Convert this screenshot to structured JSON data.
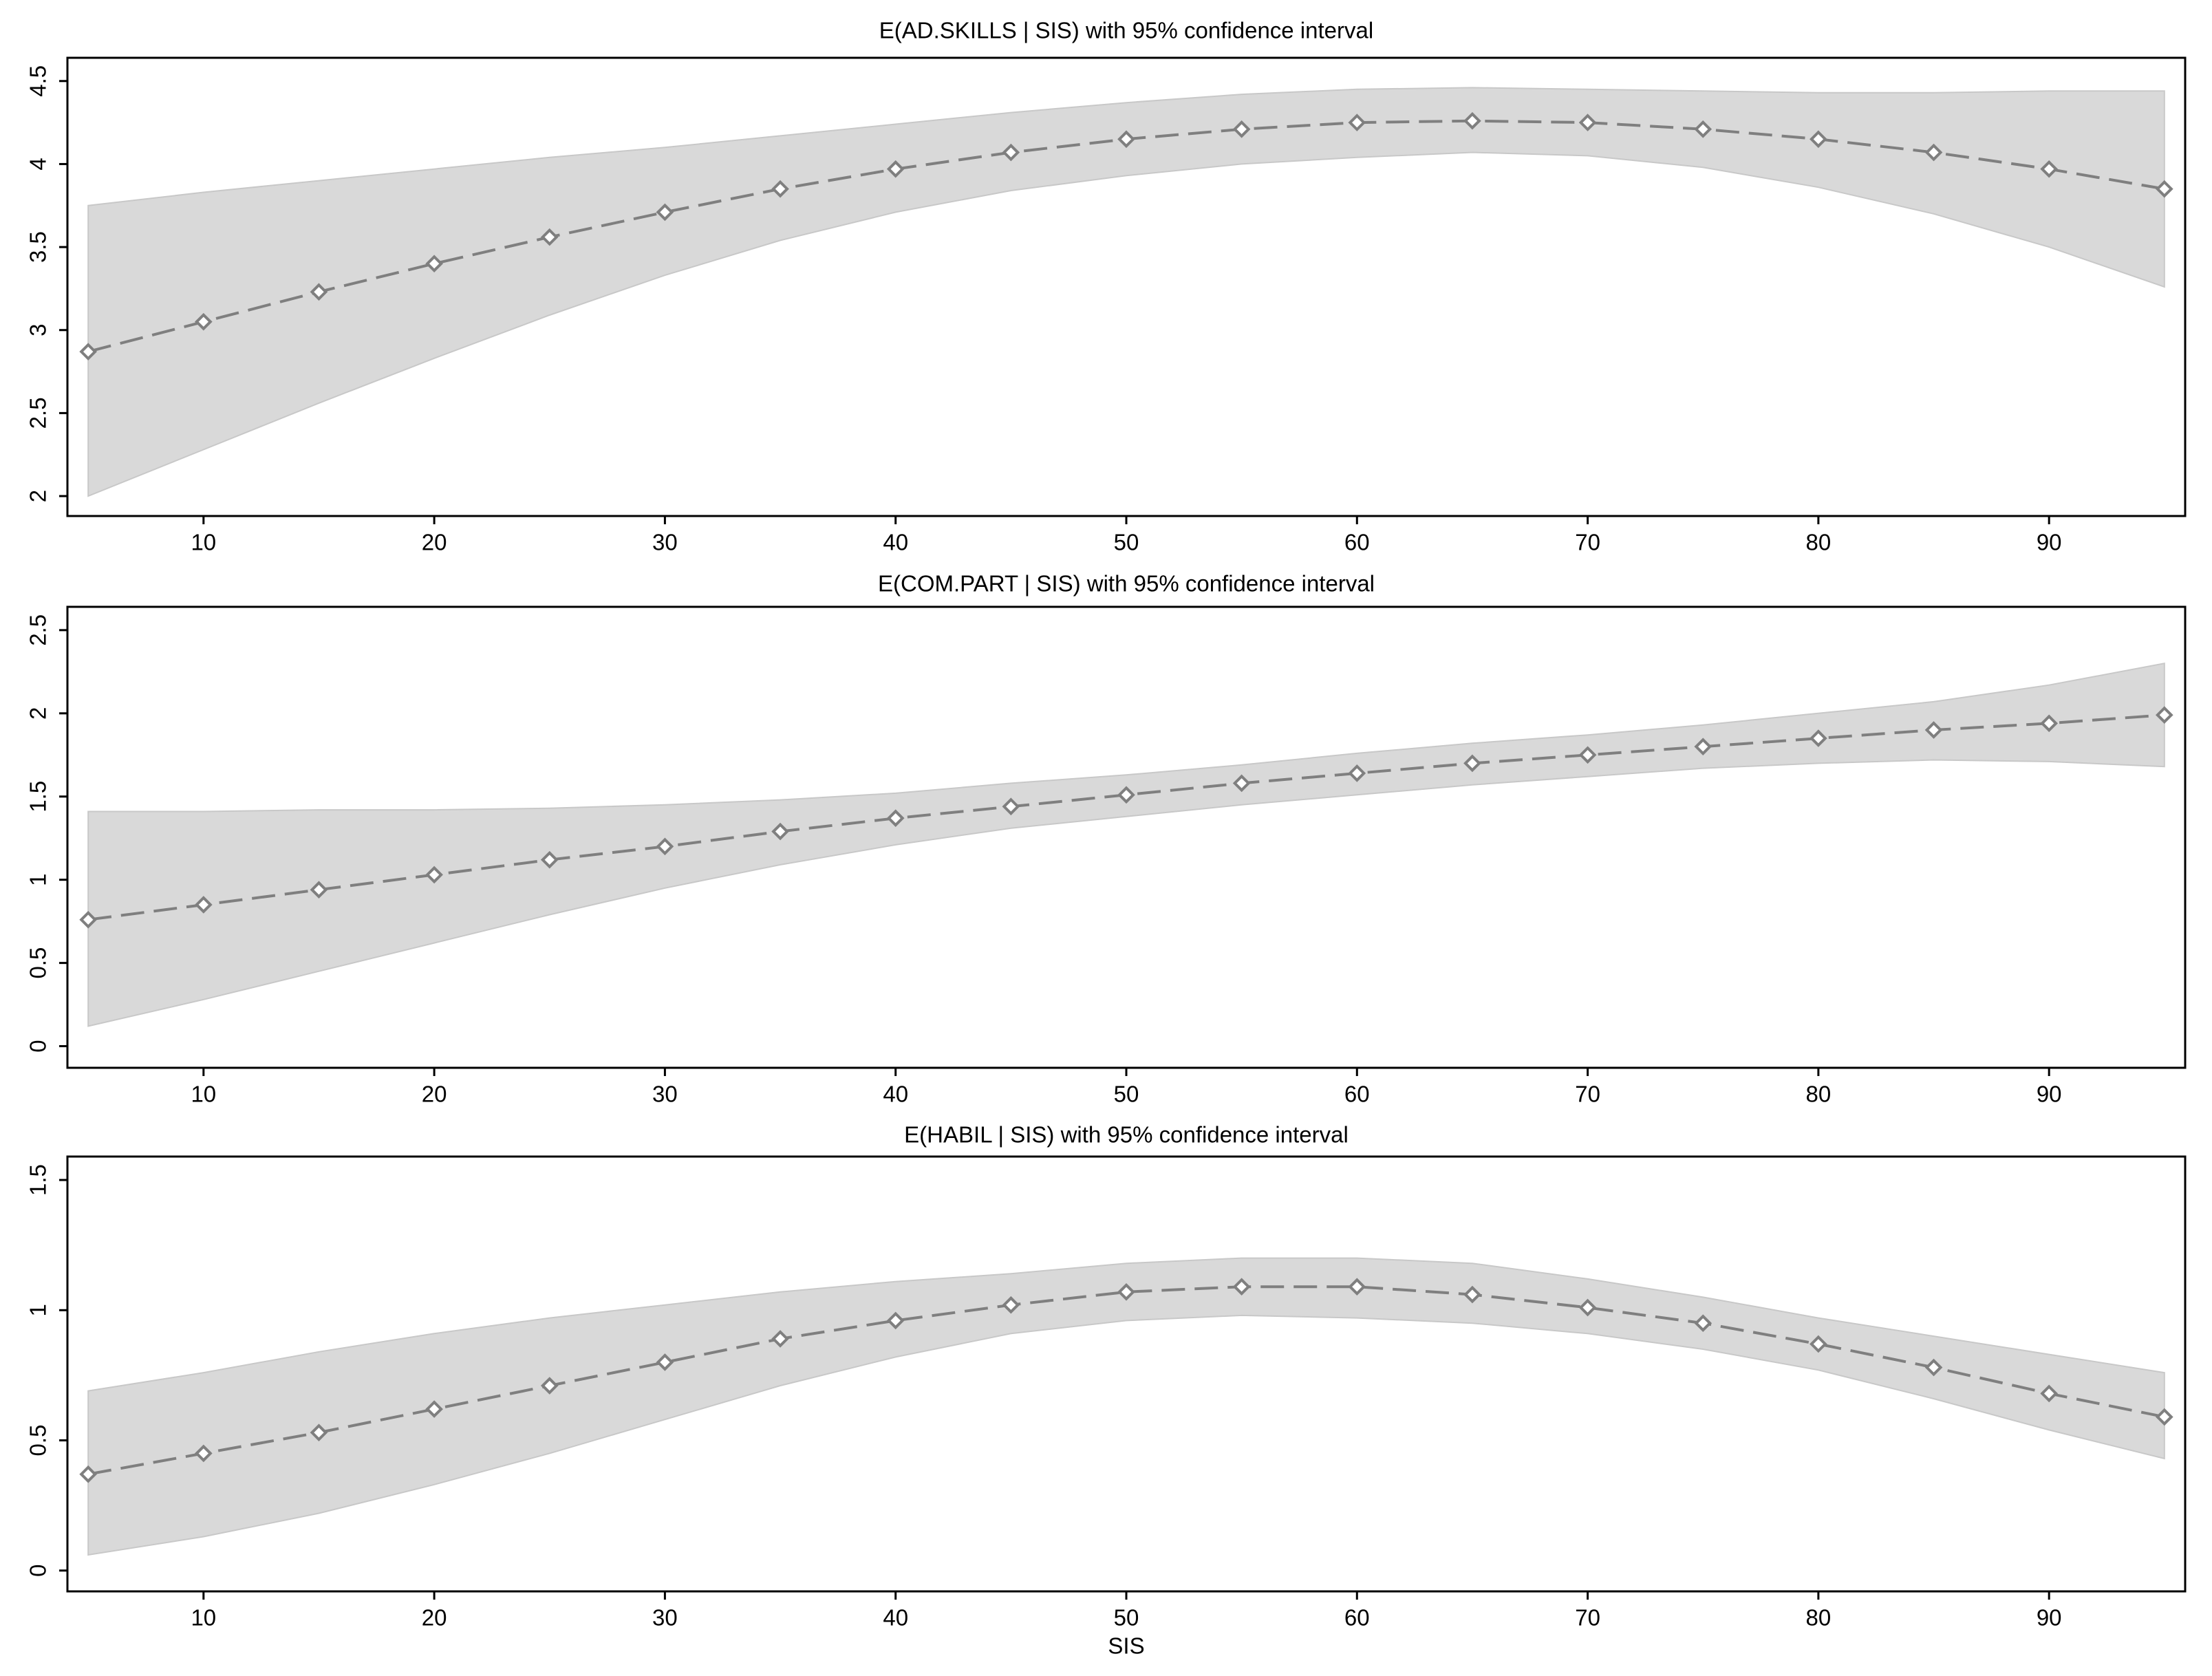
{
  "chart_data": [
    {
      "type": "line",
      "title": "E(AD.SKILLS | SIS) with 95% confidence interval",
      "x": [
        5,
        10,
        15,
        20,
        25,
        30,
        35,
        40,
        45,
        50,
        55,
        60,
        65,
        70,
        75,
        80,
        85,
        90,
        95
      ],
      "values": [
        2.87,
        3.05,
        3.23,
        3.4,
        3.56,
        3.71,
        3.85,
        3.97,
        4.07,
        4.15,
        4.21,
        4.25,
        4.26,
        4.25,
        4.21,
        4.15,
        4.07,
        3.97,
        3.85
      ],
      "upper": [
        3.75,
        3.83,
        3.9,
        3.97,
        4.04,
        4.1,
        4.17,
        4.24,
        4.31,
        4.37,
        4.42,
        4.45,
        4.46,
        4.45,
        4.44,
        4.43,
        4.43,
        4.44,
        4.44
      ],
      "lower": [
        2.0,
        2.28,
        2.56,
        2.83,
        3.09,
        3.33,
        3.54,
        3.71,
        3.84,
        3.93,
        4.0,
        4.04,
        4.07,
        4.05,
        3.98,
        3.86,
        3.7,
        3.5,
        3.26
      ],
      "color": "#7f7f7f",
      "band_color": "#d9d9d9",
      "xlim": [
        4.1,
        95.9
      ],
      "xticks": [
        10,
        20,
        30,
        40,
        50,
        60,
        70,
        80,
        90
      ],
      "ylim": [
        1.88,
        4.64
      ],
      "yticks": [
        2,
        2.5,
        3,
        3.5,
        4,
        4.5
      ]
    },
    {
      "type": "line",
      "title": "E(COM.PART | SIS) with 95% confidence interval",
      "x": [
        5,
        10,
        15,
        20,
        25,
        30,
        35,
        40,
        45,
        50,
        55,
        60,
        65,
        70,
        75,
        80,
        85,
        90,
        95
      ],
      "values": [
        0.76,
        0.85,
        0.94,
        1.03,
        1.12,
        1.2,
        1.29,
        1.37,
        1.44,
        1.51,
        1.58,
        1.64,
        1.7,
        1.75,
        1.8,
        1.85,
        1.9,
        1.94,
        1.99
      ],
      "upper": [
        1.41,
        1.41,
        1.42,
        1.42,
        1.43,
        1.45,
        1.48,
        1.52,
        1.58,
        1.63,
        1.69,
        1.76,
        1.82,
        1.87,
        1.93,
        2.0,
        2.07,
        2.17,
        2.3
      ],
      "lower": [
        0.12,
        0.28,
        0.45,
        0.62,
        0.79,
        0.95,
        1.09,
        1.21,
        1.31,
        1.38,
        1.45,
        1.51,
        1.57,
        1.62,
        1.67,
        1.7,
        1.72,
        1.71,
        1.68
      ],
      "color": "#7f7f7f",
      "band_color": "#d9d9d9",
      "xlim": [
        4.1,
        95.9
      ],
      "xticks": [
        10,
        20,
        30,
        40,
        50,
        60,
        70,
        80,
        90
      ],
      "ylim": [
        -0.13,
        2.64
      ],
      "yticks": [
        0,
        0.5,
        1,
        1.5,
        2,
        2.5
      ]
    },
    {
      "type": "line",
      "title": "E(HABIL | SIS) with 95% confidence interval",
      "x_label": "SIS",
      "x": [
        5,
        10,
        15,
        20,
        25,
        30,
        35,
        40,
        45,
        50,
        55,
        60,
        65,
        70,
        75,
        80,
        85,
        90,
        95
      ],
      "values": [
        0.37,
        0.45,
        0.53,
        0.62,
        0.71,
        0.8,
        0.89,
        0.96,
        1.02,
        1.07,
        1.09,
        1.09,
        1.06,
        1.01,
        0.95,
        0.87,
        0.78,
        0.68,
        0.59
      ],
      "upper": [
        0.69,
        0.76,
        0.84,
        0.91,
        0.97,
        1.02,
        1.07,
        1.11,
        1.14,
        1.18,
        1.2,
        1.2,
        1.18,
        1.12,
        1.05,
        0.97,
        0.9,
        0.83,
        0.76
      ],
      "lower": [
        0.06,
        0.13,
        0.22,
        0.33,
        0.45,
        0.58,
        0.71,
        0.82,
        0.91,
        0.96,
        0.98,
        0.97,
        0.95,
        0.91,
        0.85,
        0.77,
        0.66,
        0.54,
        0.43
      ],
      "color": "#7f7f7f",
      "band_color": "#d9d9d9",
      "xlim": [
        4.1,
        95.9
      ],
      "xticks": [
        10,
        20,
        30,
        40,
        50,
        60,
        70,
        80,
        90
      ],
      "ylim": [
        -0.08,
        1.59
      ],
      "yticks": [
        0,
        0.5,
        1,
        1.5
      ]
    }
  ]
}
